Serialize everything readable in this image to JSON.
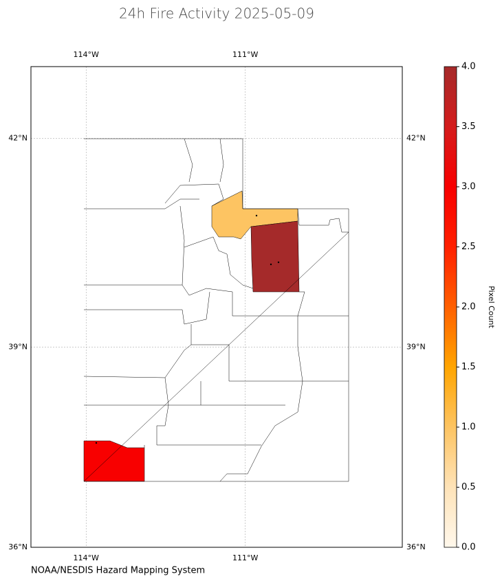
{
  "title": "24h Fire Activity 2025-05-09",
  "map": {
    "projection": "mercator",
    "xlim": [
      -115.04,
      -108.04
    ],
    "ylim": [
      36,
      43
    ],
    "xticks": [
      {
        "value": -114,
        "label": "114°W"
      },
      {
        "value": -111,
        "label": "111°W"
      }
    ],
    "yticks": [
      {
        "value": 36,
        "label": "36°N"
      },
      {
        "value": 39,
        "label": "39°N"
      },
      {
        "value": 42,
        "label": "42°N"
      }
    ],
    "grid": true,
    "regions": [
      {
        "value": 1
      },
      {
        "value": 4
      },
      {
        "value": 3
      }
    ]
  },
  "colorbar": {
    "label": "Pixel Count",
    "lim": [
      0,
      4
    ],
    "colors": [
      "#fff8ec",
      "#fee3b8",
      "#fdc462",
      "#ffa500",
      "#ff6000",
      "#ff2000",
      "#f80000",
      "#d41c1c",
      "#a52a2a"
    ],
    "ticks": [
      {
        "value": 0,
        "label": "0.0"
      },
      {
        "value": 0.5,
        "label": "0.5"
      },
      {
        "value": 1,
        "label": "1.0"
      },
      {
        "value": 1.5,
        "label": "1.5"
      },
      {
        "value": 2,
        "label": "2.0"
      },
      {
        "value": 2.5,
        "label": "2.5"
      },
      {
        "value": 3,
        "label": "3.0"
      },
      {
        "value": 3.5,
        "label": "3.5"
      },
      {
        "value": 4,
        "label": "4.0"
      }
    ]
  },
  "credit": "NOAA/NESDIS Hazard Mapping System"
}
